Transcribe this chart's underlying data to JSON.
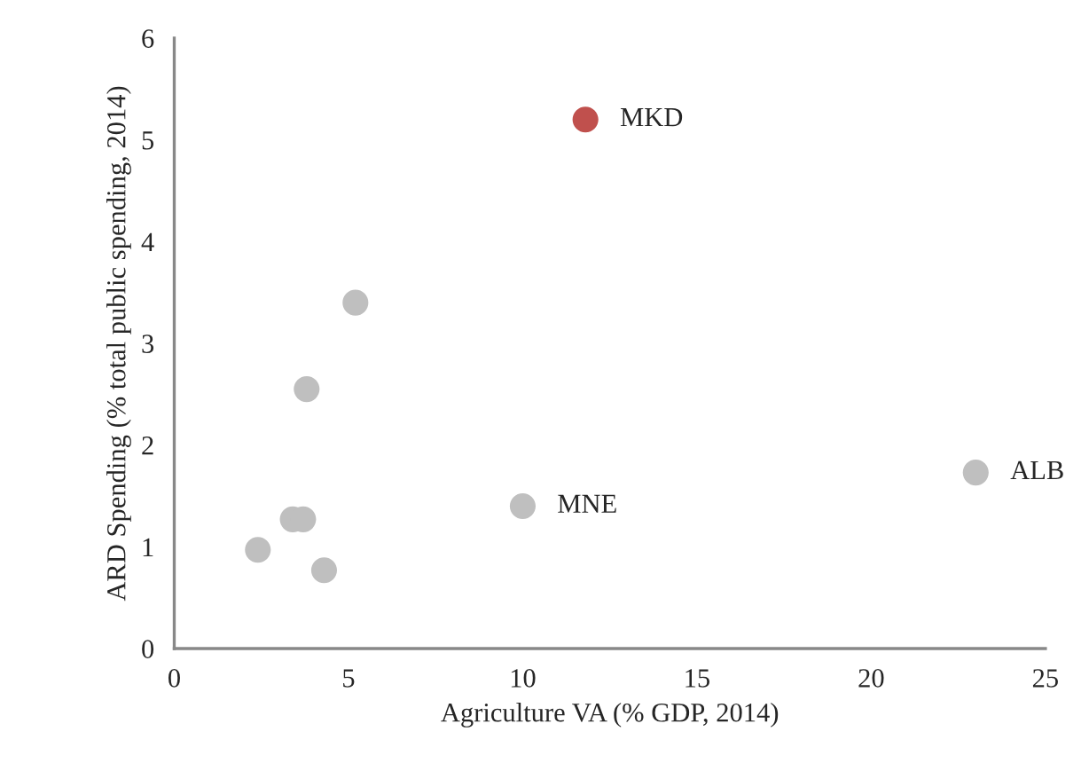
{
  "chart_data": {
    "type": "scatter",
    "xlabel": "Agriculture VA (% GDP, 2014)",
    "ylabel": "ARD Spending (% total public spending, 2014)",
    "x": [
      11.8,
      5.2,
      3.8,
      3.4,
      3.7,
      2.4,
      4.3,
      10.0,
      23.0
    ],
    "values": [
      5.2,
      3.4,
      2.55,
      1.27,
      1.27,
      0.97,
      0.77,
      1.4,
      1.73
    ],
    "colors": [
      "#c0504d",
      "#bfbfbf",
      "#bfbfbf",
      "#bfbfbf",
      "#bfbfbf",
      "#bfbfbf",
      "#bfbfbf",
      "#bfbfbf",
      "#bfbfbf"
    ],
    "annotations": [
      {
        "text": "MKD",
        "x": 11.8,
        "y": 5.2
      },
      {
        "text": "MNE",
        "x": 10.0,
        "y": 1.4
      },
      {
        "text": "ALB",
        "x": 23.0,
        "y": 1.73
      }
    ],
    "xlim": [
      0,
      25
    ],
    "xticks": [
      0,
      5,
      10,
      15,
      20,
      25
    ],
    "ylim": [
      0,
      6
    ],
    "yticks": [
      0,
      1,
      2,
      3,
      4,
      5,
      6
    ],
    "marker": "circle",
    "grid": false
  }
}
